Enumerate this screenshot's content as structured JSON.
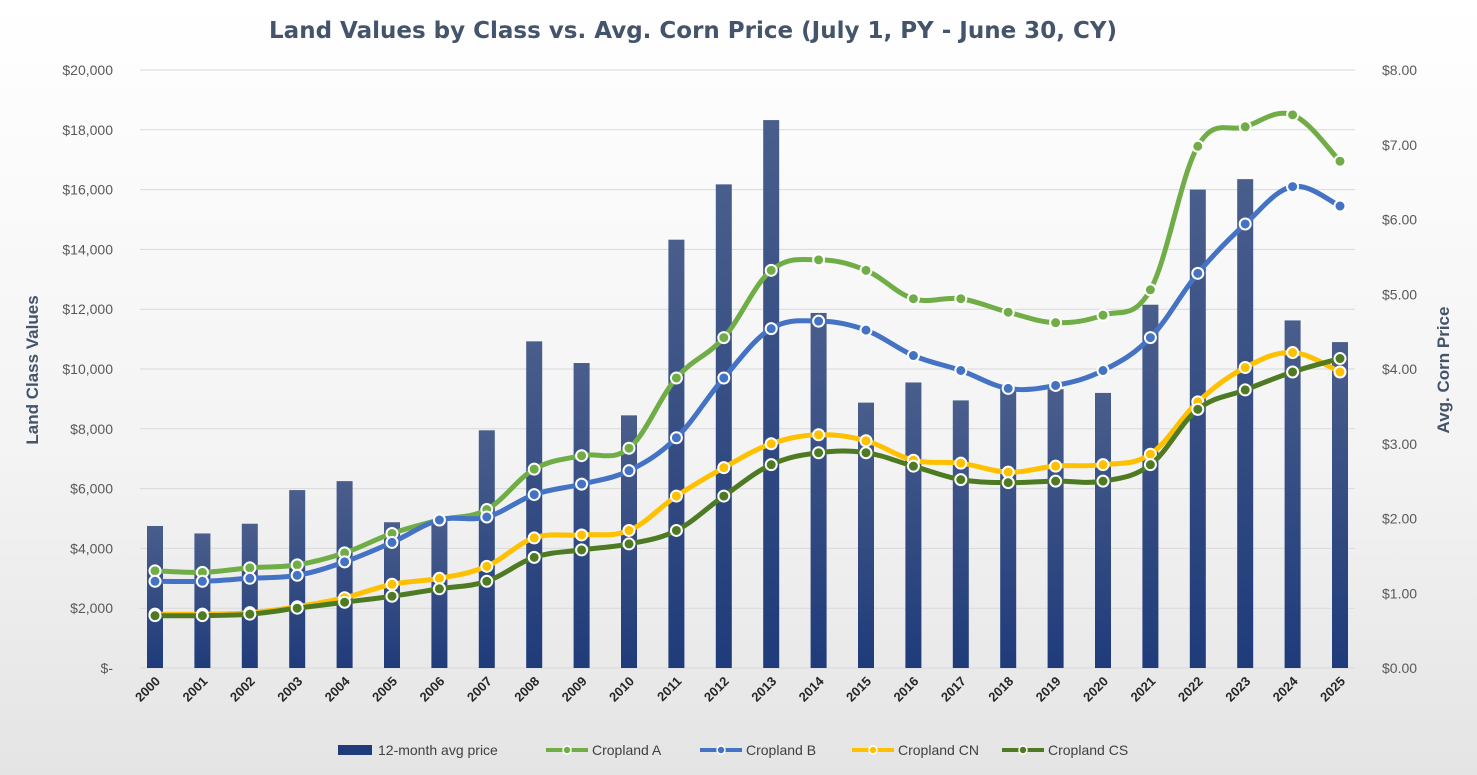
{
  "chart_data": {
    "type": "bar",
    "title": "Land Values by Class vs. Avg. Corn Price (July 1, PY - June 30, CY)",
    "ylabel": "Land Class Values",
    "y2label": "Avg. Corn Price",
    "ylim": [
      0,
      20000
    ],
    "y2lim": [
      0,
      8
    ],
    "y_ticks": [
      0,
      2000,
      4000,
      6000,
      8000,
      10000,
      12000,
      14000,
      16000,
      18000,
      20000
    ],
    "y_tick_labels": [
      "$-",
      "$2,000",
      "$4,000",
      "$6,000",
      "$8,000",
      "$10,000",
      "$12,000",
      "$14,000",
      "$16,000",
      "$18,000",
      "$20,000"
    ],
    "y2_ticks": [
      0,
      1,
      2,
      3,
      4,
      5,
      6,
      7,
      8
    ],
    "y2_tick_labels": [
      "$0.00",
      "$1.00",
      "$2.00",
      "$3.00",
      "$4.00",
      "$5.00",
      "$6.00",
      "$7.00",
      "$8.00"
    ],
    "grid": true,
    "legend_position": "bottom",
    "categories": [
      "2000",
      "2001",
      "2002",
      "2003",
      "2004",
      "2005",
      "2006",
      "2007",
      "2008",
      "2009",
      "2010",
      "2011",
      "2012",
      "2013",
      "2014",
      "2015",
      "2016",
      "2017",
      "2018",
      "2019",
      "2020",
      "2021",
      "2022",
      "2023",
      "2024",
      "2025"
    ],
    "series": [
      {
        "name": "12-month avg price",
        "type": "bar",
        "axis": "right",
        "color": "#1f3b7a",
        "values": [
          1.9,
          1.8,
          1.93,
          2.38,
          2.5,
          1.95,
          1.98,
          3.18,
          4.37,
          4.08,
          3.38,
          5.73,
          6.47,
          7.33,
          4.75,
          3.55,
          3.82,
          3.58,
          3.73,
          3.73,
          3.68,
          4.86,
          6.4,
          6.54,
          4.65,
          4.36
        ]
      },
      {
        "name": "Cropland A",
        "type": "line",
        "axis": "left",
        "color": "#70ad47",
        "values": [
          3250,
          3200,
          3350,
          3450,
          3850,
          4500,
          4950,
          5300,
          6650,
          7100,
          7350,
          9700,
          11050,
          13300,
          13650,
          13300,
          12350,
          12350,
          11900,
          11550,
          11800,
          12650,
          17450,
          18100,
          18500,
          16950
        ]
      },
      {
        "name": "Cropland B",
        "type": "line",
        "axis": "left",
        "color": "#4472c4",
        "values": [
          2900,
          2900,
          3000,
          3100,
          3550,
          4200,
          4950,
          5050,
          5800,
          6150,
          6600,
          7700,
          9700,
          11350,
          11600,
          11300,
          10450,
          9950,
          9350,
          9450,
          9950,
          11050,
          13200,
          14850,
          16100,
          15450
        ]
      },
      {
        "name": "Cropland CN",
        "type": "line",
        "axis": "left",
        "color": "#ffc000",
        "values": [
          1800,
          1800,
          1850,
          2050,
          2350,
          2800,
          3000,
          3400,
          4350,
          4450,
          4600,
          5750,
          6700,
          7500,
          7800,
          7600,
          6950,
          6850,
          6550,
          6750,
          6800,
          7150,
          8900,
          10050,
          10550,
          9900
        ]
      },
      {
        "name": "Cropland CS",
        "type": "line",
        "axis": "left",
        "color": "#4d7a22",
        "values": [
          1750,
          1750,
          1800,
          2000,
          2200,
          2400,
          2650,
          2900,
          3700,
          3950,
          4150,
          4600,
          5750,
          6800,
          7200,
          7200,
          6750,
          6300,
          6200,
          6250,
          6250,
          6800,
          8650,
          9300,
          9900,
          10350
        ]
      }
    ]
  }
}
